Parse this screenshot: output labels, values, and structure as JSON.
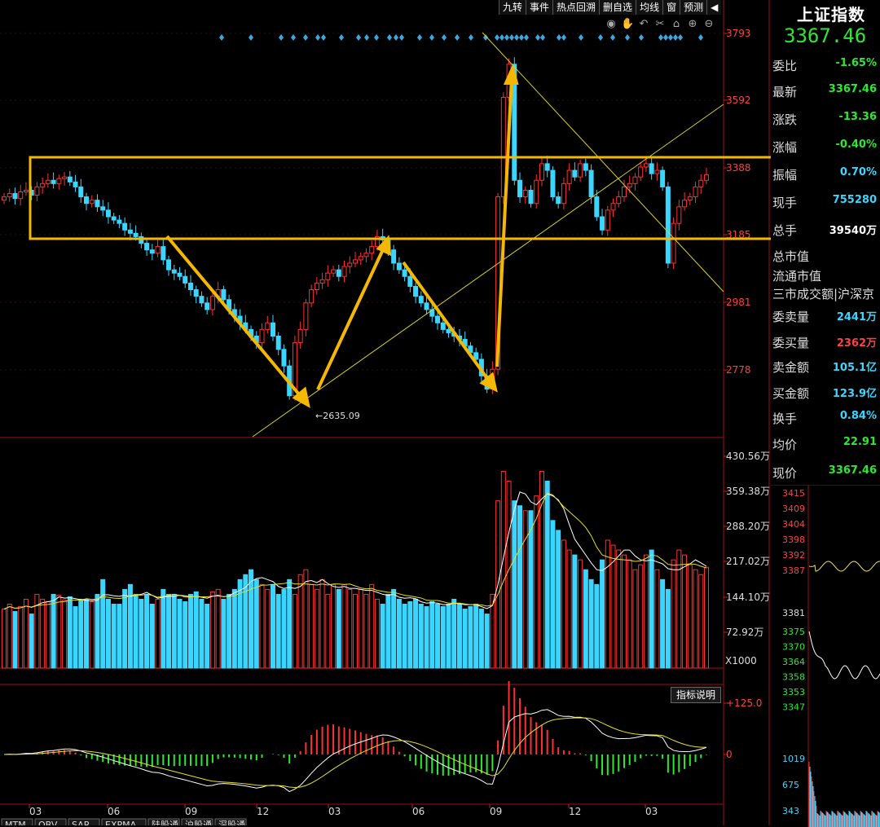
{
  "toolbar": [
    "九转",
    "事件",
    "热点回溯",
    "删自选",
    "均线",
    "窗",
    "预测",
    "◀"
  ],
  "indicator_button": "指标说明",
  "right_panel": {
    "title": "上证指数",
    "price": "3367.46",
    "rows": [
      {
        "label": "委比",
        "value": "-1.65%",
        "color": "#2ee830"
      },
      {
        "label": "最新",
        "value": "3367.46",
        "color": "#2ee830"
      },
      {
        "label": "涨跌",
        "value": "-13.36",
        "color": "#2ee830"
      },
      {
        "label": "涨幅",
        "value": "-0.40%",
        "color": "#2ee830"
      },
      {
        "label": "振幅",
        "value": "0.70%",
        "color": "#3ad6ff"
      },
      {
        "label": "现手",
        "value": "755280",
        "color": "#3ad6ff"
      },
      {
        "label": "总手",
        "value": "39540万",
        "color": "#ffffff"
      }
    ],
    "plain_rows": [
      "总市值",
      "流通市值",
      "三市成交额|沪深京"
    ],
    "rows2": [
      {
        "label": "委卖量",
        "value": "2441万",
        "color": "#3ad6ff"
      },
      {
        "label": "委买量",
        "value": "2362万",
        "color": "#ff4040"
      },
      {
        "label": "卖金额",
        "value": "105.1亿",
        "color": "#3ad6ff"
      },
      {
        "label": "买金额",
        "value": "123.9亿",
        "color": "#3ad6ff"
      },
      {
        "label": "换手",
        "value": "0.84%",
        "color": "#3ad6ff"
      },
      {
        "label": "均价",
        "value": "22.91",
        "color": "#2ee830"
      }
    ],
    "current_label": "现价",
    "current_value": "3367.46",
    "mini_price_ticks_red": [
      "3415",
      "3409",
      "3404",
      "3398",
      "3392",
      "3387"
    ],
    "mini_price_ticks_white": "3381",
    "mini_price_ticks_green": [
      "3375",
      "3370",
      "3364",
      "3358",
      "3353",
      "3347"
    ],
    "mini_volume_ticks": [
      "1019",
      "675",
      "343"
    ]
  },
  "chart_data": {
    "type": "candlestick",
    "price_axis_labels": [
      "3793",
      "3592",
      "3388",
      "3185",
      "2981",
      "2778"
    ],
    "low_annotation": "2635.09",
    "volume_axis_labels": [
      "430.56万",
      "359.38万",
      "288.20万",
      "217.02万",
      "144.10万",
      "72.92万"
    ],
    "volume_multiplier": "X1000",
    "macd_axis_labels": [
      "125.0",
      "0"
    ],
    "x_tick_labels": [
      "03",
      "06",
      "09",
      "12",
      "03",
      "06",
      "09",
      "12",
      "03"
    ],
    "bottom_tabs": [
      "MTM",
      "OBV",
      "SAR",
      "EXPMA",
      "陆股通",
      "沪股通",
      "深股通"
    ],
    "price_range": [
      2580,
      3860
    ],
    "close_series": [
      3300,
      3310,
      3295,
      3315,
      3320,
      3305,
      3330,
      3340,
      3350,
      3340,
      3355,
      3360,
      3345,
      3330,
      3300,
      3280,
      3290,
      3270,
      3260,
      3240,
      3230,
      3220,
      3200,
      3190,
      3180,
      3160,
      3140,
      3130,
      3150,
      3110,
      3080,
      3070,
      3060,
      3040,
      3020,
      3000,
      2980,
      2960,
      3000,
      3020,
      2990,
      2960,
      2940,
      2920,
      2900,
      2880,
      2860,
      2900,
      2920,
      2880,
      2840,
      2790,
      2700,
      2860,
      2900,
      2980,
      3020,
      3040,
      3050,
      3070,
      3080,
      3060,
      3090,
      3100,
      3110,
      3120,
      3130,
      3150,
      3180,
      3170,
      3140,
      3100,
      3080,
      3060,
      3030,
      3000,
      2980,
      2960,
      2940,
      2920,
      2900,
      2890,
      2880,
      2870,
      2850,
      2830,
      2810,
      2760,
      2720,
      2780,
      3300,
      3600,
      3700,
      3350,
      3300,
      3320,
      3280,
      3350,
      3400,
      3380,
      3300,
      3280,
      3340,
      3380,
      3360,
      3400,
      3380,
      3300,
      3240,
      3200,
      3260,
      3280,
      3300,
      3330,
      3340,
      3360,
      3390,
      3400,
      3370,
      3380,
      3330,
      3100,
      3220,
      3270,
      3290,
      3300,
      3330,
      3350,
      3367
    ],
    "volume_series_wan": [
      120,
      130,
      115,
      125,
      140,
      110,
      150,
      140,
      135,
      150,
      148,
      138,
      145,
      125,
      140,
      140,
      135,
      150,
      180,
      140,
      130,
      130,
      160,
      170,
      150,
      140,
      150,
      130,
      140,
      160,
      150,
      150,
      140,
      135,
      150,
      155,
      140,
      130,
      155,
      160,
      140,
      150,
      160,
      180,
      190,
      200,
      180,
      170,
      160,
      170,
      150,
      160,
      180,
      150,
      190,
      200,
      170,
      160,
      180,
      150,
      170,
      160,
      170,
      160,
      150,
      160,
      150,
      170,
      140,
      130,
      150,
      160,
      140,
      130,
      135,
      140,
      130,
      125,
      135,
      130,
      125,
      130,
      140,
      130,
      120,
      125,
      130,
      120,
      110,
      150,
      340,
      400,
      380,
      340,
      330,
      320,
      320,
      350,
      400,
      380,
      300,
      280,
      260,
      240,
      230,
      220,
      200,
      180,
      170,
      220,
      260,
      250,
      240,
      230,
      220,
      200,
      210,
      230,
      240,
      200,
      180,
      160,
      220,
      240,
      230,
      210,
      200,
      190,
      205
    ],
    "macd_range": [
      -40,
      140
    ]
  }
}
